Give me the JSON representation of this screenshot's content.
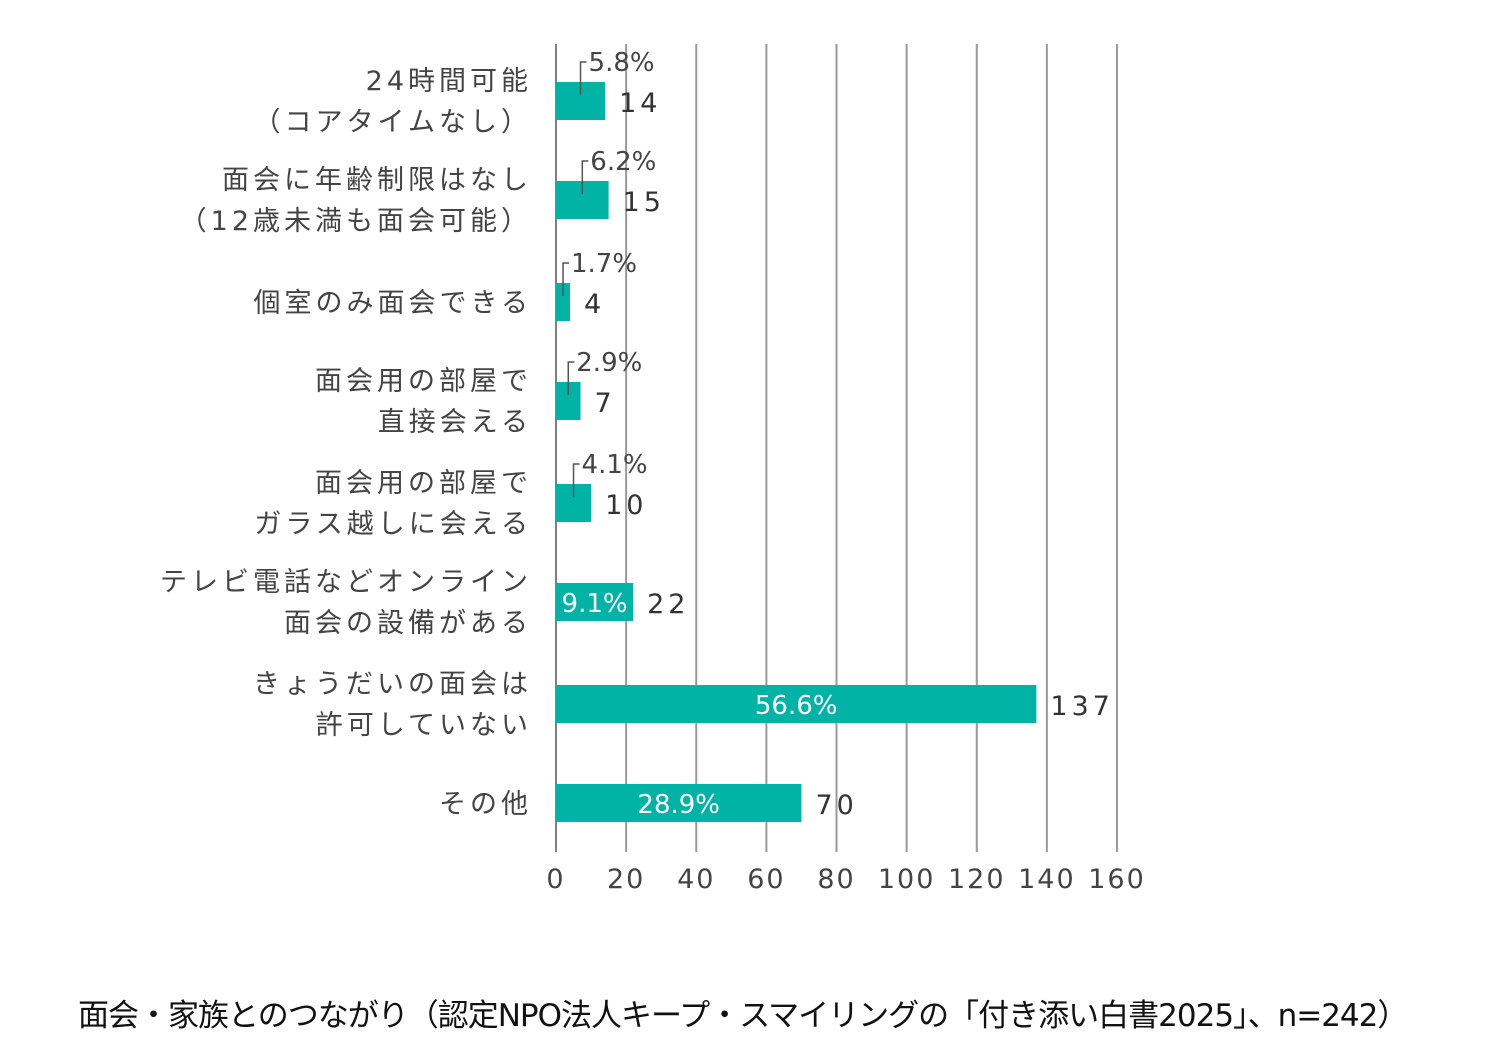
{
  "caption": "面会・家族とのつながり（認定NPO法人キープ・スマイリングの「付き添い白書2025」、n=242）",
  "colors": {
    "bar": "#00B3A5",
    "grid": "#999999",
    "axis": "#7f7f7f"
  },
  "chart_data": {
    "type": "bar",
    "orientation": "horizontal",
    "categories": [
      [
        "24時間可能",
        "（コアタイムなし）"
      ],
      [
        "面会に年齢制限はなし",
        "（12歳未満も面会可能）"
      ],
      [
        "個室のみ面会できる"
      ],
      [
        "面会用の部屋で",
        "直接会える"
      ],
      [
        "面会用の部屋で",
        "ガラス越しに会える"
      ],
      [
        "テレビ電話などオンライン",
        "面会の設備がある"
      ],
      [
        "きょうだいの面会は",
        "許可していない"
      ],
      [
        "その他"
      ]
    ],
    "values": [
      14,
      15,
      4,
      7,
      10,
      22,
      137,
      70
    ],
    "value_labels": [
      "14",
      "15",
      "4",
      "7",
      "10",
      "22",
      "137",
      "70"
    ],
    "percent_labels": [
      "5.8%",
      "6.2%",
      "1.7%",
      "2.9%",
      "4.1%",
      "9.1%",
      "56.6%",
      "28.9%"
    ],
    "percent_inside": [
      false,
      false,
      false,
      false,
      false,
      true,
      true,
      true
    ],
    "xlim": [
      0,
      160
    ],
    "xticks": [
      0,
      20,
      40,
      60,
      80,
      100,
      120,
      140,
      160
    ],
    "grid": true,
    "title": "",
    "xlabel": "",
    "ylabel": ""
  }
}
